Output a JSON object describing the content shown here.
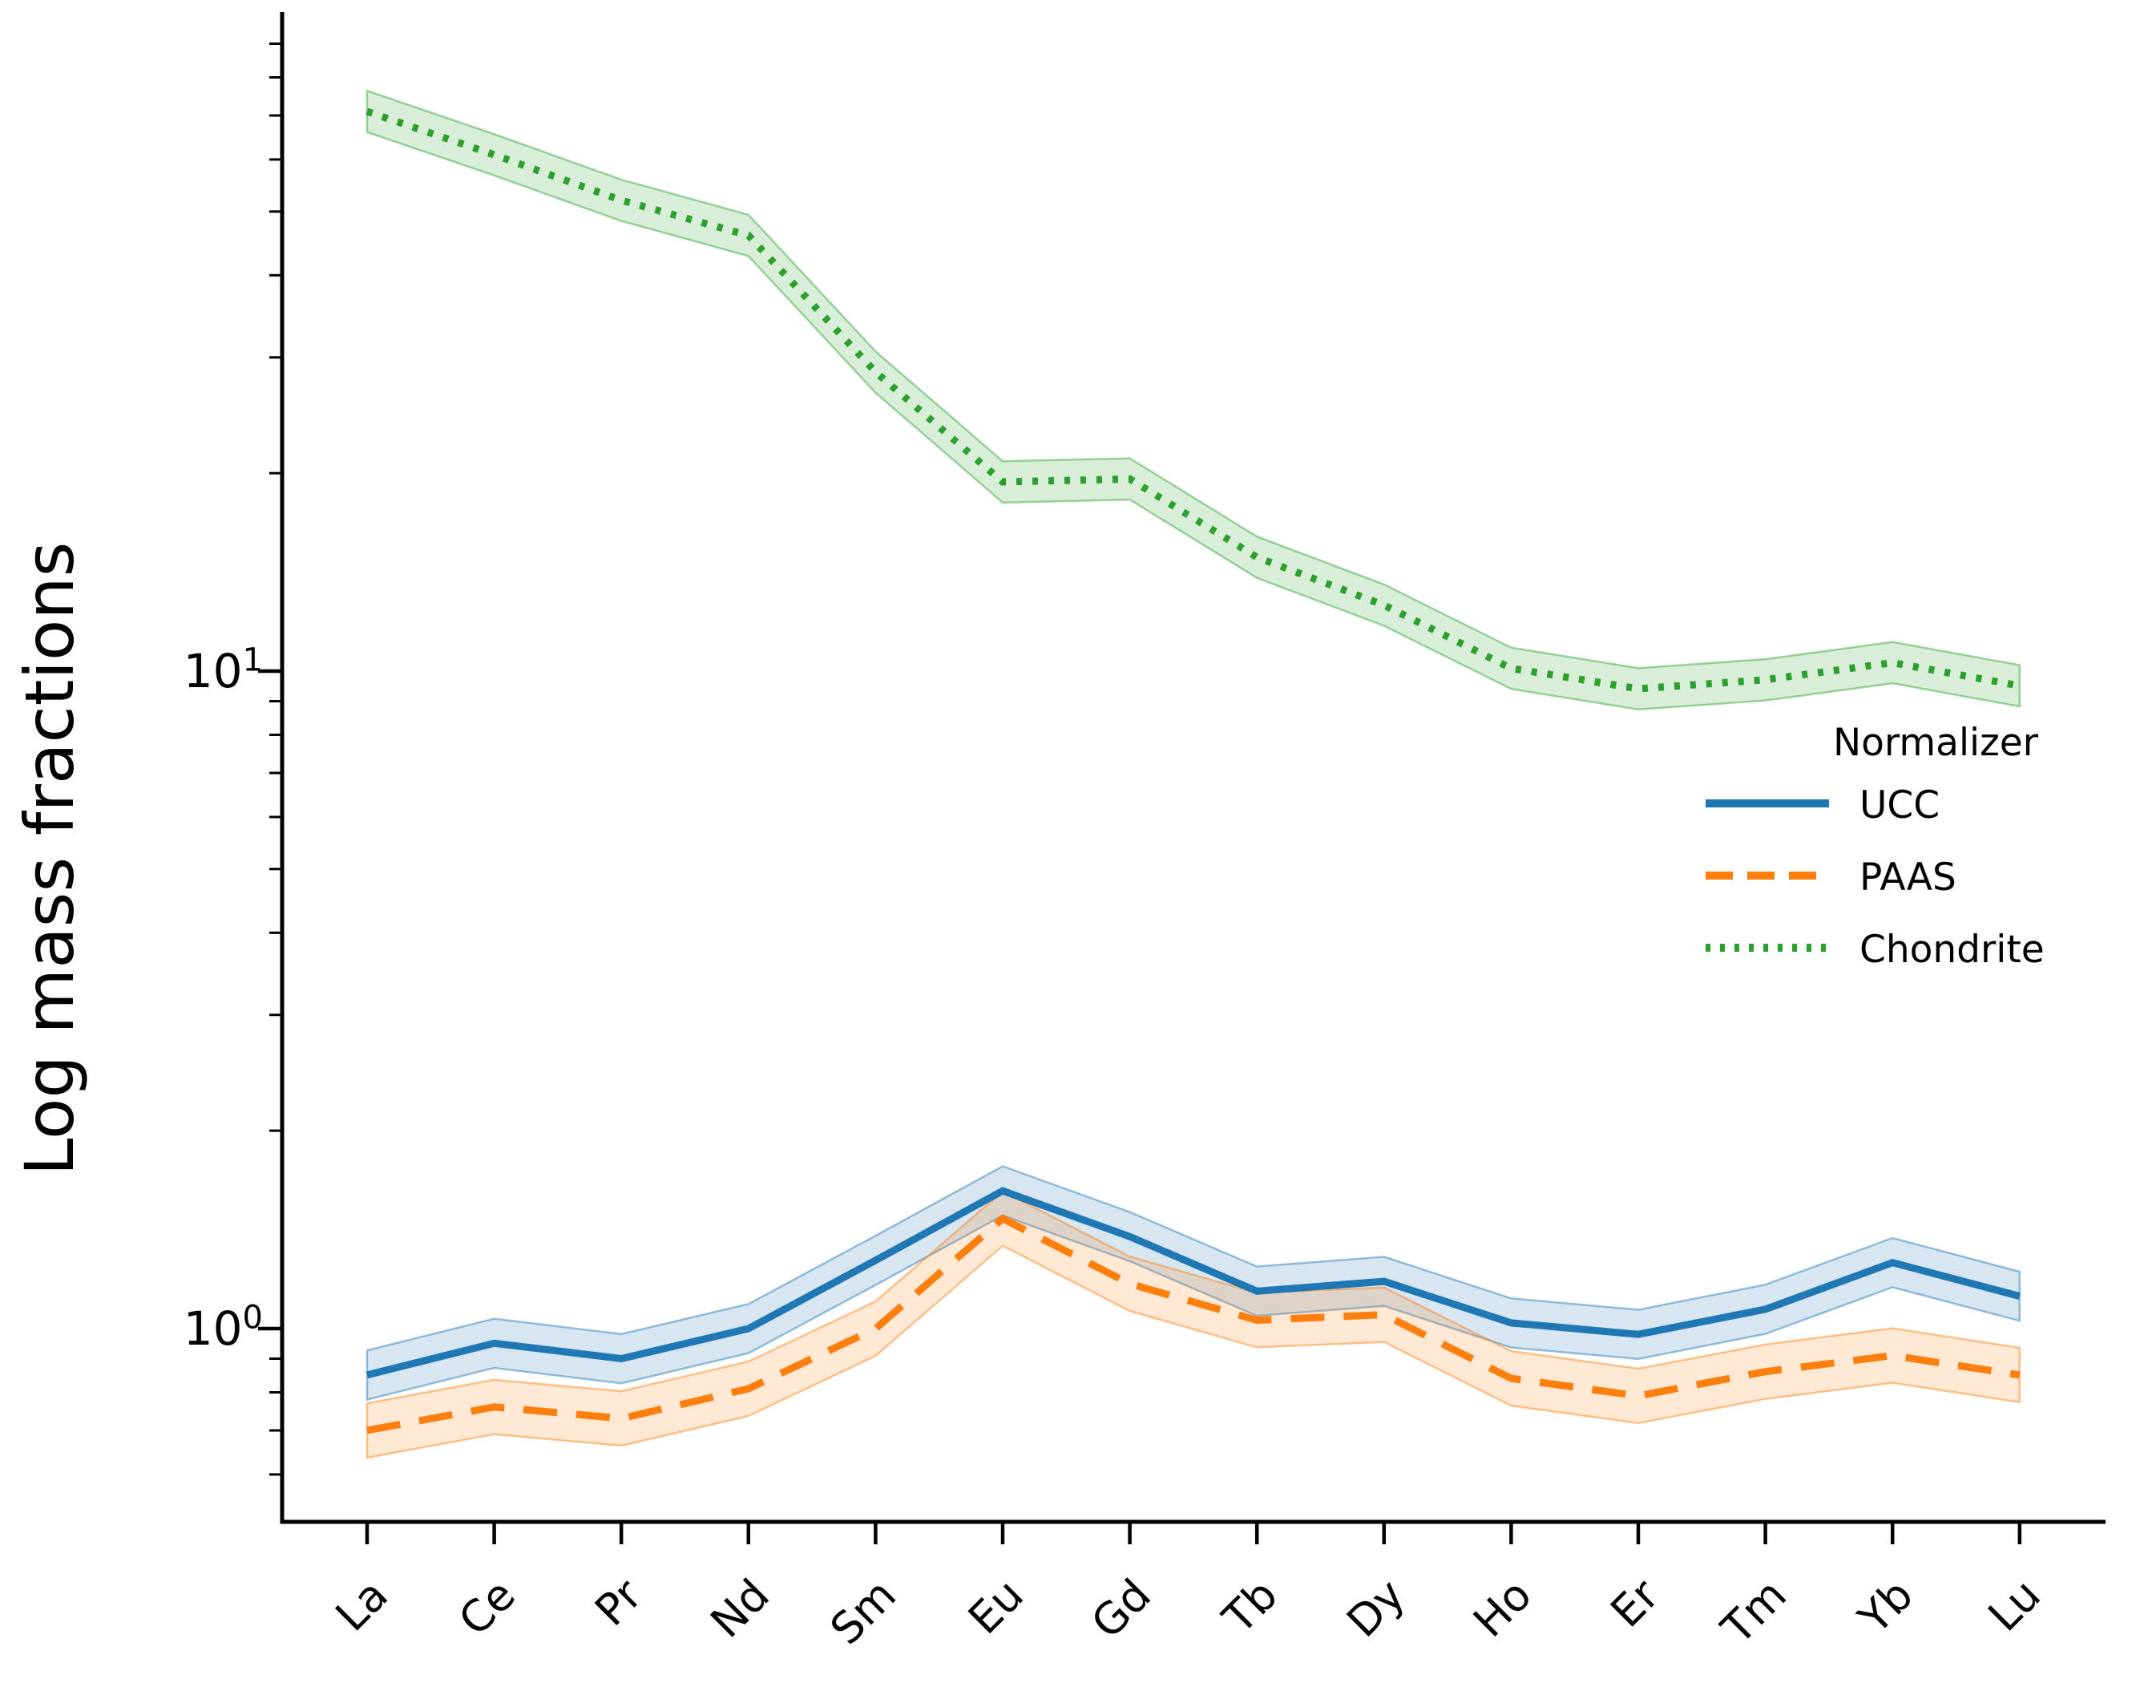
{
  "chart_data": {
    "type": "line",
    "title": "",
    "xlabel": "",
    "ylabel": "Log mass fractions",
    "yscale": "log",
    "ylim": [
      0.51,
      100
    ],
    "grid": false,
    "legend_title": "Normalizer",
    "legend_position": "right, below green line",
    "categories": [
      "La",
      "Ce",
      "Pr",
      "Nd",
      "Sm",
      "Eu",
      "Gd",
      "Tb",
      "Dy",
      "Ho",
      "Er",
      "Tm",
      "Yb",
      "Lu"
    ],
    "series": [
      {
        "name": "UCC",
        "style": "solid",
        "color": "#1f77b4",
        "band_ratio": 1.09,
        "values": [
          0.85,
          0.95,
          0.9,
          1.0,
          1.27,
          1.62,
          1.38,
          1.14,
          1.18,
          1.02,
          0.98,
          1.07,
          1.26,
          1.12
        ]
      },
      {
        "name": "PAAS",
        "style": "dashed",
        "color": "#ff7f0e",
        "band_ratio": 1.1,
        "values": [
          0.7,
          0.76,
          0.73,
          0.81,
          1.0,
          1.47,
          1.17,
          1.03,
          1.05,
          0.84,
          0.79,
          0.86,
          0.91,
          0.85
        ]
      },
      {
        "name": "Chondrite",
        "style": "dotted",
        "color": "#2ca02c",
        "band_ratio": 1.075,
        "values": [
          71,
          61,
          52,
          46,
          28.5,
          19.4,
          19.6,
          14.9,
          12.6,
          10.1,
          9.4,
          9.7,
          10.3,
          9.5
        ]
      }
    ],
    "yticks_major": [
      {
        "base": "10",
        "exp": "1",
        "value": 10
      },
      {
        "base": "10",
        "exp": "0",
        "value": 1
      }
    ],
    "yticks_minor": [
      0.6,
      0.7,
      0.8,
      0.9,
      2,
      3,
      4,
      5,
      6,
      7,
      8,
      9,
      20,
      30,
      40,
      50,
      60,
      70,
      80,
      90
    ],
    "axis_color": "#000000",
    "background_color": "#ffffff"
  }
}
